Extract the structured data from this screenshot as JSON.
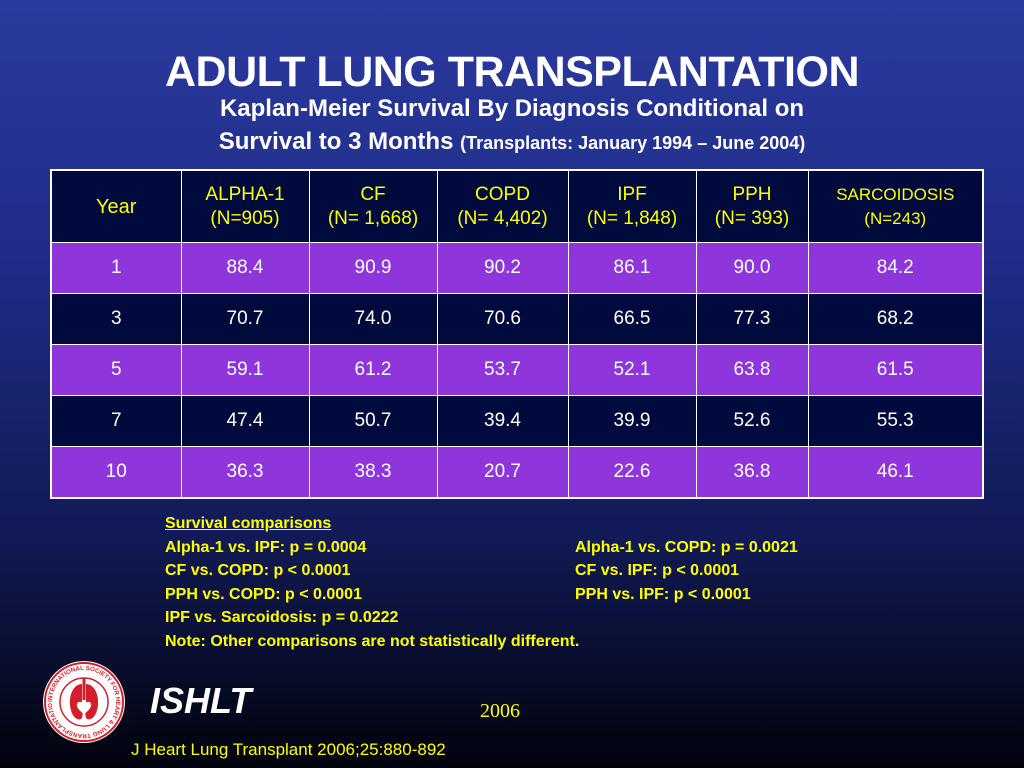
{
  "title": "ADULT LUNG TRANSPLANTATION",
  "subtitle": {
    "line1": "Kaplan-Meier Survival By Diagnosis Conditional on",
    "line2_main": "Survival to 3 Months",
    "line2_small": "(Transplants: January 1994 – June 2004)"
  },
  "table": {
    "headers": [
      {
        "label": "Year",
        "n": ""
      },
      {
        "label": "ALPHA-1",
        "n": "(N=905)"
      },
      {
        "label": "CF",
        "n": "(N= 1,668)"
      },
      {
        "label": "COPD",
        "n": "(N= 4,402)"
      },
      {
        "label": "IPF",
        "n": "(N= 1,848)"
      },
      {
        "label": "PPH",
        "n": "(N= 393)"
      },
      {
        "label": "SARCOIDOSIS",
        "n": "(N=243)"
      }
    ],
    "rows": [
      [
        "1",
        "88.4",
        "90.9",
        "90.2",
        "86.1",
        "90.0",
        "84.2"
      ],
      [
        "3",
        "70.7",
        "74.0",
        "70.6",
        "66.5",
        "77.3",
        "68.2"
      ],
      [
        "5",
        "59.1",
        "61.2",
        "53.7",
        "52.1",
        "63.8",
        "61.5"
      ],
      [
        "7",
        "47.4",
        "50.7",
        "39.4",
        "39.9",
        "52.6",
        "55.3"
      ],
      [
        "10",
        "36.3",
        "38.3",
        "20.7",
        "22.6",
        "36.8",
        "46.1"
      ]
    ]
  },
  "comparisons": {
    "heading": "Survival comparisons",
    "rows": [
      {
        "left": "Alpha-1 vs. IPF: p = 0.0004",
        "right": "Alpha-1 vs. COPD: p = 0.0021"
      },
      {
        "left": "CF vs. COPD: p < 0.0001",
        "right": "CF vs. IPF: p < 0.0001"
      },
      {
        "left": "PPH vs. COPD: p < 0.0001",
        "right": "PPH vs. IPF: p < 0.0001"
      },
      {
        "left": "IPF vs. Sarcoidosis: p = 0.0222",
        "right": ""
      }
    ],
    "note": "Note: Other comparisons are not statistically different."
  },
  "footer": {
    "brand": "ISHLT",
    "year": "2006",
    "citation": "J Heart Lung Transplant 2006;25:880-892",
    "logo_icon": "ishlt-seal-icon",
    "logo_text": "INTERNATIONAL SOCIETY FOR HEART & LUNG TRANSPLANTATION"
  },
  "colors": {
    "header_bg": "#000a3c",
    "header_text": "#ffff00",
    "purple_row": "#8e35dc",
    "dark_row": "#000a3c",
    "accent_yellow": "#ffff00"
  }
}
